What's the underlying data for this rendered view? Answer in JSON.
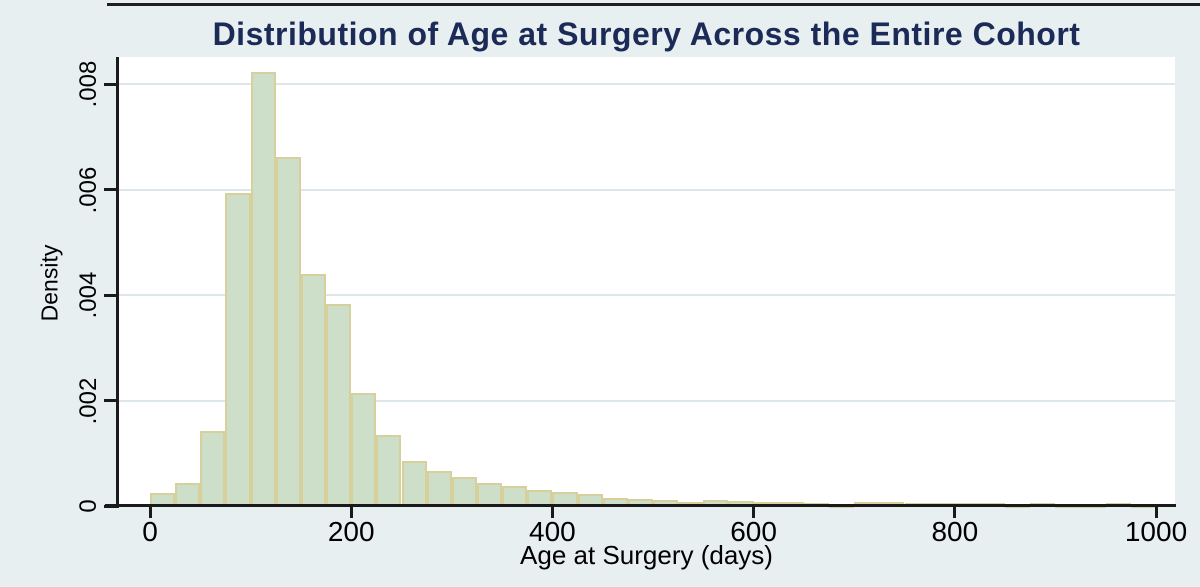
{
  "chart_data": {
    "type": "bar",
    "subtype": "histogram",
    "title": "Distribution of Age at Surgery Across the Entire Cohort",
    "xlabel": "Age at Surgery (days)",
    "ylabel": "Density",
    "xlim": [
      0,
      1000
    ],
    "ylim": [
      0,
      0.008
    ],
    "grid": "horizontal",
    "legend": "none",
    "x_tick_values": [
      0,
      200,
      400,
      600,
      800,
      1000
    ],
    "x_tick_labels": [
      "0",
      "200",
      "400",
      "600",
      "800",
      "1000"
    ],
    "y_tick_values": [
      0,
      0.002,
      0.004,
      0.006,
      0.008
    ],
    "y_tick_labels": [
      "0",
      ".002",
      ".004",
      ".006",
      ".008"
    ],
    "bin_width_days": 25,
    "bin_start_days": [
      0,
      25,
      50,
      75,
      100,
      125,
      150,
      175,
      200,
      225,
      250,
      275,
      300,
      325,
      350,
      375,
      400,
      425,
      450,
      475,
      500,
      525,
      550,
      575,
      600,
      625,
      650,
      675,
      700,
      725,
      750,
      775,
      800,
      825,
      850,
      875,
      900,
      925,
      950,
      975
    ],
    "densities": [
      0.00025,
      0.00043,
      0.00142,
      0.00594,
      0.00823,
      0.00662,
      0.0044,
      0.00383,
      0.00215,
      0.00134,
      0.00086,
      0.00067,
      0.00055,
      0.00043,
      0.00037,
      0.00031,
      0.00027,
      0.00023,
      0.00016,
      0.00013,
      0.00011,
      8e-05,
      0.00011,
      0.0001,
      8e-05,
      7e-05,
      6e-05,
      4e-05,
      7e-05,
      8e-05,
      5e-05,
      6e-05,
      6e-05,
      5e-05,
      4e-05,
      5e-05,
      3e-05,
      4e-05,
      5e-05,
      4e-05
    ]
  },
  "colors": {
    "background": "#e7eff1",
    "plot_background": "#ffffff",
    "bar_fill": "#cddfc8",
    "bar_border": "#d8d09c",
    "gridline": "#dde7eb",
    "axis": "#1a1a1a",
    "title": "#1b2a56",
    "tick_text": "#000000",
    "top_border": "#1f1f1f"
  }
}
